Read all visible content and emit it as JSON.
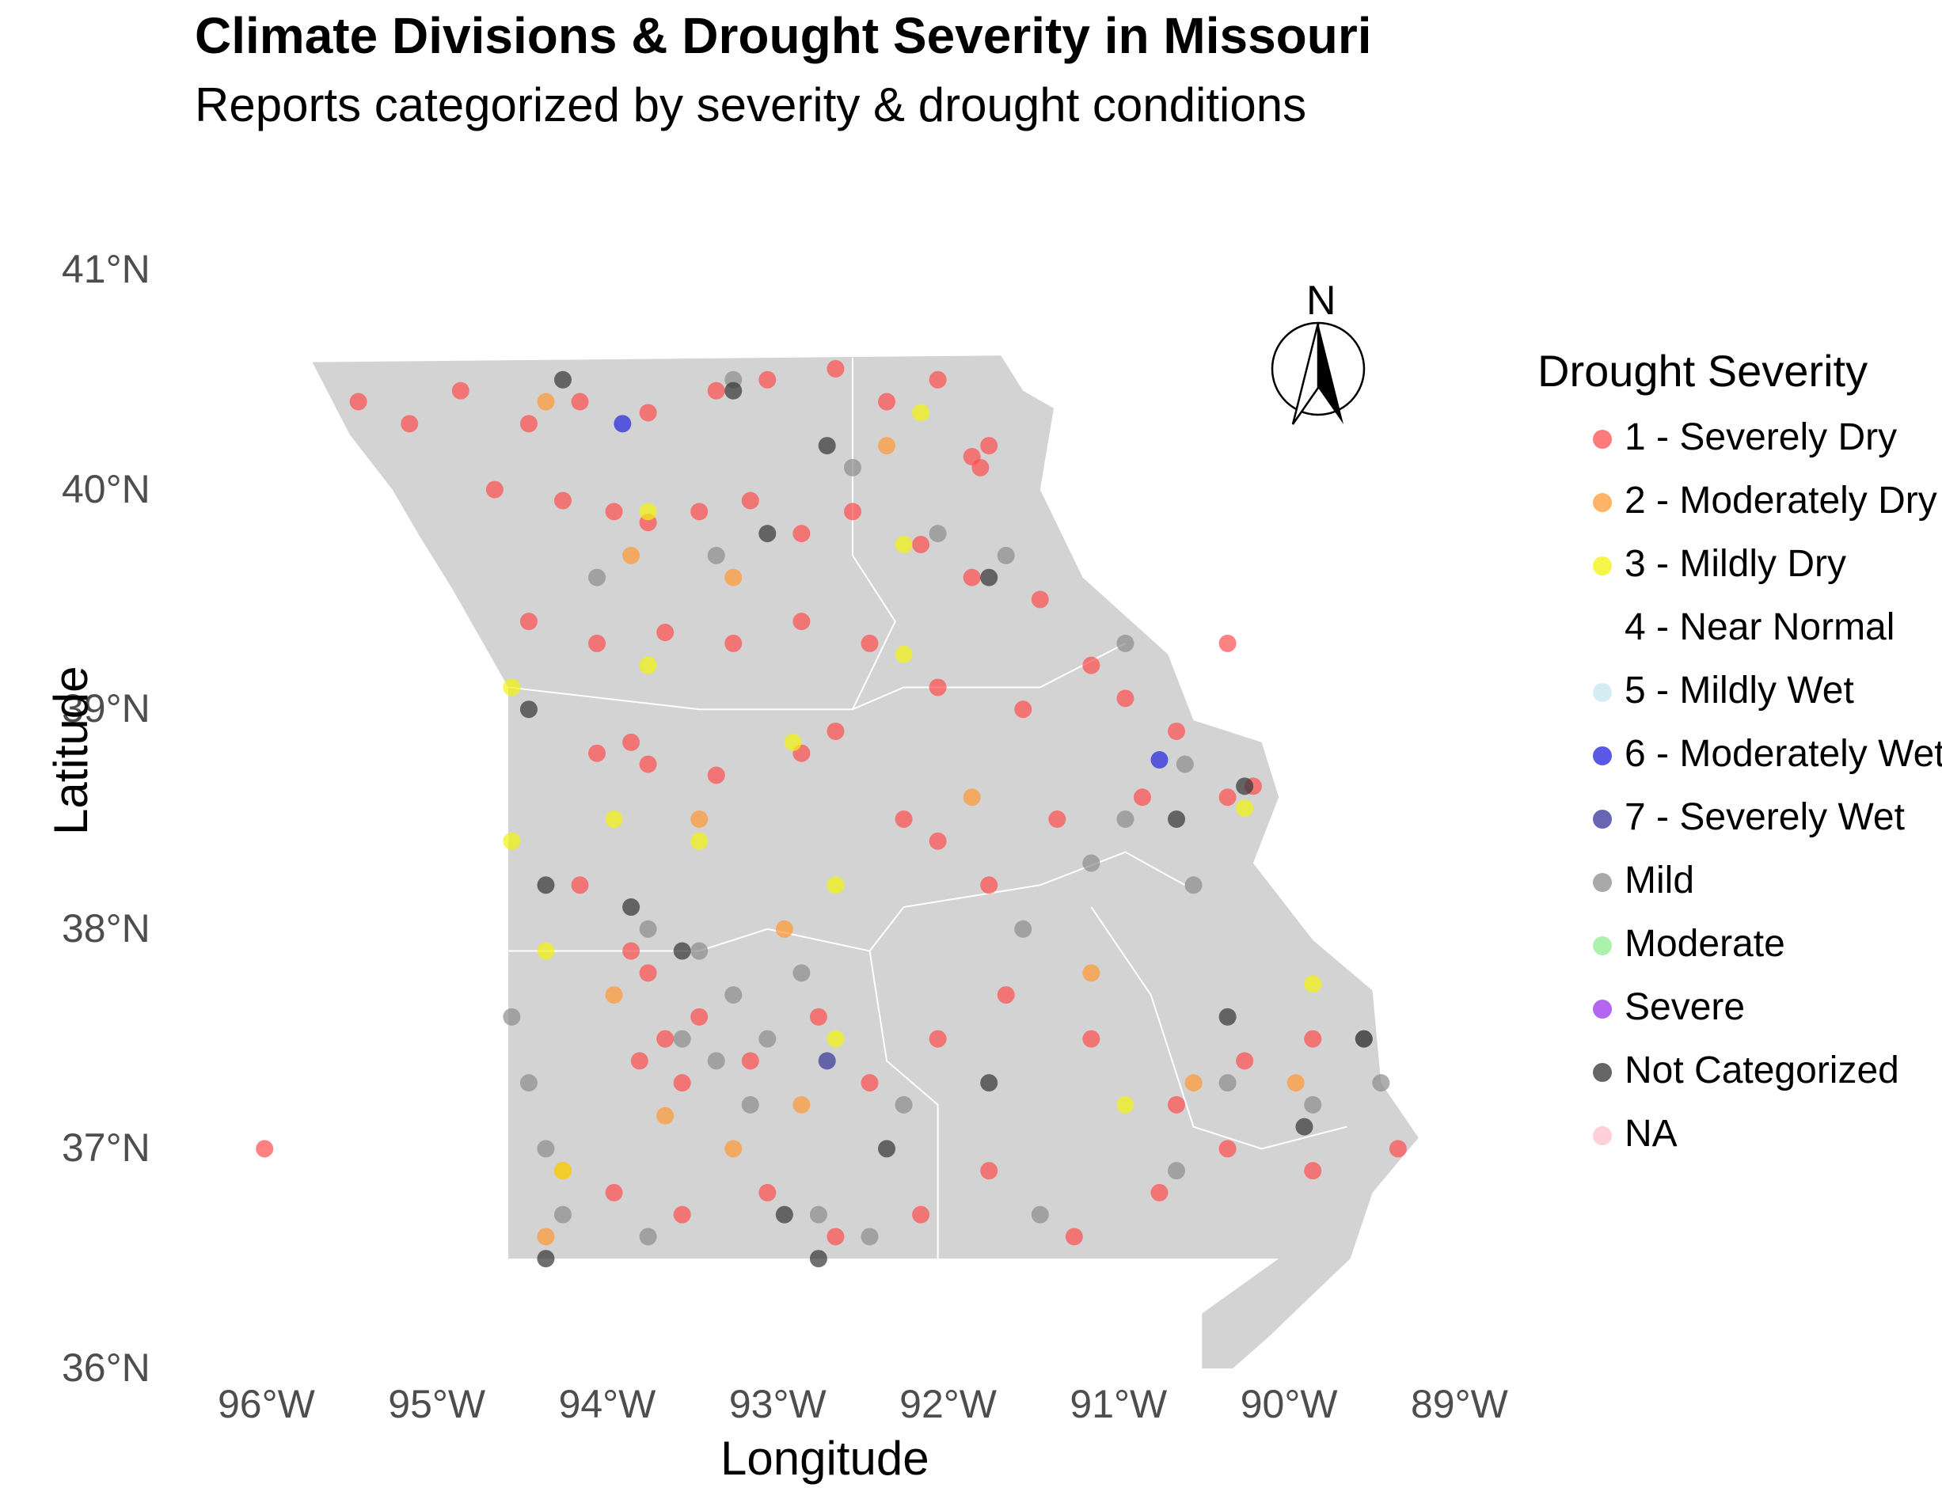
{
  "title": "Climate Divisions & Drought Severity in Missouri",
  "subtitle": "Reports categorized by severity & drought conditions",
  "x_axis": {
    "label": "Longitude",
    "ticks": [
      "96°W",
      "95°W",
      "94°W",
      "93°W",
      "92°W",
      "91°W",
      "90°W",
      "89°W"
    ]
  },
  "y_axis": {
    "label": "Latitude",
    "ticks": [
      "41°N",
      "40°N",
      "39°N",
      "38°N",
      "37°N",
      "36°N"
    ]
  },
  "north_arrow": {
    "label": "N",
    "icon": "north-arrow-icon"
  },
  "legend": {
    "title": "Drought Severity",
    "items": [
      {
        "label": "1 - Severely Dry",
        "color": "#ff4d4d"
      },
      {
        "label": "2 - Moderately Dry",
        "color": "#ff9933"
      },
      {
        "label": "3 - Mildly Dry",
        "color": "#f2f20d"
      },
      {
        "label": "4 - Near Normal",
        "color": "#ffffff"
      },
      {
        "label": "5 - Mildly Wet",
        "color": "#c6e7f2"
      },
      {
        "label": "6 - Moderately Wet",
        "color": "#2222dd"
      },
      {
        "label": "7 - Severely Wet",
        "color": "#333399"
      },
      {
        "label": "Mild",
        "color": "#8c8c8c"
      },
      {
        "label": "Moderate",
        "color": "#90ee90"
      },
      {
        "label": "Severe",
        "color": "#9933ee"
      },
      {
        "label": "Not Categorized",
        "color": "#333333"
      },
      {
        "label": "NA",
        "color": "#ffc0cb"
      }
    ]
  },
  "colors": {
    "state_fill": "#d3d3d3",
    "division_border": "#ffffff"
  },
  "chart_data": {
    "type": "scatter",
    "title": "Climate Divisions & Drought Severity in Missouri",
    "subtitle": "Reports categorized by severity & drought conditions",
    "xlabel": "Longitude",
    "ylabel": "Latitude",
    "xlim": [
      -96.5,
      -88.8
    ],
    "ylim": [
      36,
      41
    ],
    "state_outline": [
      [
        -95.77,
        40.58
      ],
      [
        -91.73,
        40.61
      ],
      [
        -91.6,
        40.45
      ],
      [
        -91.42,
        40.37
      ],
      [
        -91.5,
        40.0
      ],
      [
        -91.25,
        39.6
      ],
      [
        -90.75,
        39.25
      ],
      [
        -90.6,
        38.95
      ],
      [
        -90.2,
        38.85
      ],
      [
        -90.1,
        38.6
      ],
      [
        -90.25,
        38.3
      ],
      [
        -89.9,
        37.95
      ],
      [
        -89.55,
        37.72
      ],
      [
        -89.5,
        37.3
      ],
      [
        -89.28,
        37.05
      ],
      [
        -89.55,
        36.8
      ],
      [
        -89.68,
        36.5
      ],
      [
        -89.95,
        36.3
      ],
      [
        -90.15,
        36.15
      ],
      [
        -90.37,
        36.0
      ],
      [
        -90.55,
        36.0
      ],
      [
        -90.55,
        36.25
      ],
      [
        -90.1,
        36.5
      ],
      [
        -94.62,
        36.5
      ],
      [
        -94.62,
        39.1
      ],
      [
        -94.95,
        39.55
      ],
      [
        -95.15,
        39.8
      ],
      [
        -95.3,
        40.0
      ],
      [
        -95.55,
        40.25
      ],
      [
        -95.77,
        40.58
      ]
    ],
    "series": [
      {
        "name": "1 - Severely Dry",
        "points": [
          [
            -95.5,
            40.4
          ],
          [
            -95.2,
            40.3
          ],
          [
            -94.9,
            40.45
          ],
          [
            -94.5,
            40.3
          ],
          [
            -94.2,
            40.4
          ],
          [
            -93.8,
            40.35
          ],
          [
            -93.4,
            40.45
          ],
          [
            -93.1,
            40.5
          ],
          [
            -92.7,
            40.55
          ],
          [
            -92.4,
            40.4
          ],
          [
            -92.1,
            40.5
          ],
          [
            -91.9,
            40.15
          ],
          [
            -91.8,
            40.2
          ],
          [
            -91.85,
            40.1
          ],
          [
            -94.7,
            40.0
          ],
          [
            -94.3,
            39.95
          ],
          [
            -94.0,
            39.9
          ],
          [
            -93.8,
            39.85
          ],
          [
            -93.5,
            39.9
          ],
          [
            -93.2,
            39.95
          ],
          [
            -92.9,
            39.8
          ],
          [
            -92.6,
            39.9
          ],
          [
            -92.2,
            39.75
          ],
          [
            -91.9,
            39.6
          ],
          [
            -91.5,
            39.5
          ],
          [
            -91.2,
            39.2
          ],
          [
            -94.5,
            39.4
          ],
          [
            -94.1,
            39.3
          ],
          [
            -93.7,
            39.35
          ],
          [
            -93.3,
            39.3
          ],
          [
            -92.9,
            39.4
          ],
          [
            -92.5,
            39.3
          ],
          [
            -92.1,
            39.1
          ],
          [
            -91.6,
            39.0
          ],
          [
            -91.0,
            39.05
          ],
          [
            -90.7,
            38.9
          ],
          [
            -94.1,
            38.8
          ],
          [
            -93.9,
            38.85
          ],
          [
            -93.8,
            38.75
          ],
          [
            -93.4,
            38.7
          ],
          [
            -92.9,
            38.8
          ],
          [
            -92.7,
            38.9
          ],
          [
            -92.3,
            38.5
          ],
          [
            -92.1,
            38.4
          ],
          [
            -91.8,
            38.2
          ],
          [
            -91.4,
            38.5
          ],
          [
            -90.9,
            38.6
          ],
          [
            -90.4,
            38.6
          ],
          [
            -94.2,
            38.2
          ],
          [
            -93.9,
            37.9
          ],
          [
            -93.8,
            37.8
          ],
          [
            -93.7,
            37.5
          ],
          [
            -93.6,
            37.3
          ],
          [
            -93.85,
            37.4
          ],
          [
            -93.5,
            37.6
          ],
          [
            -93.2,
            37.4
          ],
          [
            -92.8,
            37.6
          ],
          [
            -92.5,
            37.3
          ],
          [
            -92.1,
            37.5
          ],
          [
            -91.7,
            37.7
          ],
          [
            -91.2,
            37.5
          ],
          [
            -90.7,
            37.2
          ],
          [
            -90.3,
            37.4
          ],
          [
            -89.9,
            37.5
          ],
          [
            -94.3,
            36.9
          ],
          [
            -94.0,
            36.8
          ],
          [
            -93.6,
            36.7
          ],
          [
            -93.1,
            36.8
          ],
          [
            -92.7,
            36.6
          ],
          [
            -92.2,
            36.7
          ],
          [
            -91.8,
            36.9
          ],
          [
            -91.3,
            36.6
          ],
          [
            -90.8,
            36.8
          ],
          [
            -90.4,
            37.0
          ],
          [
            -89.9,
            36.9
          ],
          [
            -89.4,
            37.0
          ],
          [
            -96.05,
            37.0
          ],
          [
            -90.4,
            39.3
          ],
          [
            -90.25,
            38.65
          ]
        ]
      },
      {
        "name": "2 - Moderately Dry",
        "points": [
          [
            -94.4,
            40.4
          ],
          [
            -93.9,
            39.7
          ],
          [
            -93.3,
            39.6
          ],
          [
            -92.4,
            40.2
          ],
          [
            -93.5,
            38.5
          ],
          [
            -94.0,
            37.7
          ],
          [
            -93.7,
            37.15
          ],
          [
            -93.3,
            37.0
          ],
          [
            -92.9,
            37.2
          ],
          [
            -91.9,
            38.6
          ],
          [
            -91.2,
            37.8
          ],
          [
            -90.6,
            37.3
          ],
          [
            -90.0,
            37.3
          ],
          [
            -94.4,
            36.6
          ],
          [
            -93.0,
            38.0
          ]
        ]
      },
      {
        "name": "3 - Mildly Dry",
        "points": [
          [
            -92.2,
            40.35
          ],
          [
            -93.8,
            39.9
          ],
          [
            -92.3,
            39.75
          ],
          [
            -94.6,
            39.1
          ],
          [
            -93.8,
            39.2
          ],
          [
            -92.3,
            39.25
          ],
          [
            -92.95,
            38.85
          ],
          [
            -94.0,
            38.5
          ],
          [
            -93.5,
            38.4
          ],
          [
            -92.7,
            38.2
          ],
          [
            -94.6,
            38.4
          ],
          [
            -90.3,
            38.55
          ],
          [
            -89.9,
            37.75
          ],
          [
            -94.4,
            37.9
          ],
          [
            -91.0,
            37.2
          ],
          [
            -94.3,
            36.9
          ],
          [
            -92.7,
            37.5
          ]
        ]
      },
      {
        "name": "6 - Moderately Wet",
        "points": [
          [
            -93.95,
            40.3
          ],
          [
            -90.8,
            38.77
          ]
        ]
      },
      {
        "name": "7 - Severely Wet",
        "points": [
          [
            -92.75,
            37.4
          ]
        ]
      },
      {
        "name": "Mild",
        "points": [
          [
            -93.3,
            40.5
          ],
          [
            -92.6,
            40.1
          ],
          [
            -92.1,
            39.8
          ],
          [
            -91.7,
            39.7
          ],
          [
            -94.1,
            39.6
          ],
          [
            -93.4,
            39.7
          ],
          [
            -91.0,
            39.3
          ],
          [
            -90.6,
            38.2
          ],
          [
            -90.65,
            38.75
          ],
          [
            -93.8,
            38.0
          ],
          [
            -93.5,
            37.9
          ],
          [
            -93.3,
            37.7
          ],
          [
            -93.6,
            37.5
          ],
          [
            -93.4,
            37.4
          ],
          [
            -93.1,
            37.5
          ],
          [
            -92.9,
            37.8
          ],
          [
            -93.2,
            37.2
          ],
          [
            -92.8,
            36.7
          ],
          [
            -92.5,
            36.6
          ],
          [
            -93.8,
            36.6
          ],
          [
            -94.3,
            36.7
          ],
          [
            -94.4,
            37.0
          ],
          [
            -94.5,
            37.3
          ],
          [
            -94.6,
            37.6
          ],
          [
            -92.3,
            37.2
          ],
          [
            -91.5,
            36.7
          ],
          [
            -90.7,
            36.9
          ],
          [
            -90.4,
            37.3
          ],
          [
            -89.6,
            37.5
          ],
          [
            -89.5,
            37.3
          ],
          [
            -89.9,
            37.2
          ],
          [
            -91.6,
            38.0
          ],
          [
            -91.2,
            38.3
          ],
          [
            -91.0,
            38.5
          ]
        ]
      },
      {
        "name": "Not Categorized",
        "points": [
          [
            -94.3,
            40.5
          ],
          [
            -93.3,
            40.45
          ],
          [
            -92.75,
            40.2
          ],
          [
            -91.8,
            39.6
          ],
          [
            -93.1,
            39.8
          ],
          [
            -94.5,
            39.0
          ],
          [
            -94.4,
            38.2
          ],
          [
            -93.9,
            38.1
          ],
          [
            -93.6,
            37.9
          ],
          [
            -93.0,
            36.7
          ],
          [
            -92.8,
            36.5
          ],
          [
            -94.4,
            36.5
          ],
          [
            -90.3,
            38.65
          ],
          [
            -90.4,
            37.6
          ],
          [
            -89.6,
            37.5
          ],
          [
            -89.95,
            37.1
          ],
          [
            -92.4,
            37.0
          ],
          [
            -91.8,
            37.3
          ],
          [
            -90.7,
            38.5
          ]
        ]
      }
    ]
  }
}
